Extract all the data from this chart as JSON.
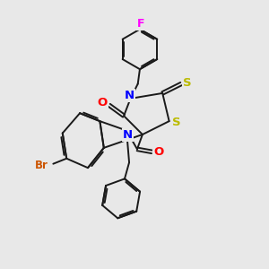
{
  "bg_color": "#e8e8e8",
  "bond_color": "#1a1a1a",
  "bond_width": 1.4,
  "dbl_off": 0.055,
  "atom_colors": {
    "N": "#0000ff",
    "O": "#ff0000",
    "S": "#bbbb00",
    "Br": "#cc5500",
    "F": "#ff00ff",
    "C": "#1a1a1a"
  },
  "fs": 8.5
}
